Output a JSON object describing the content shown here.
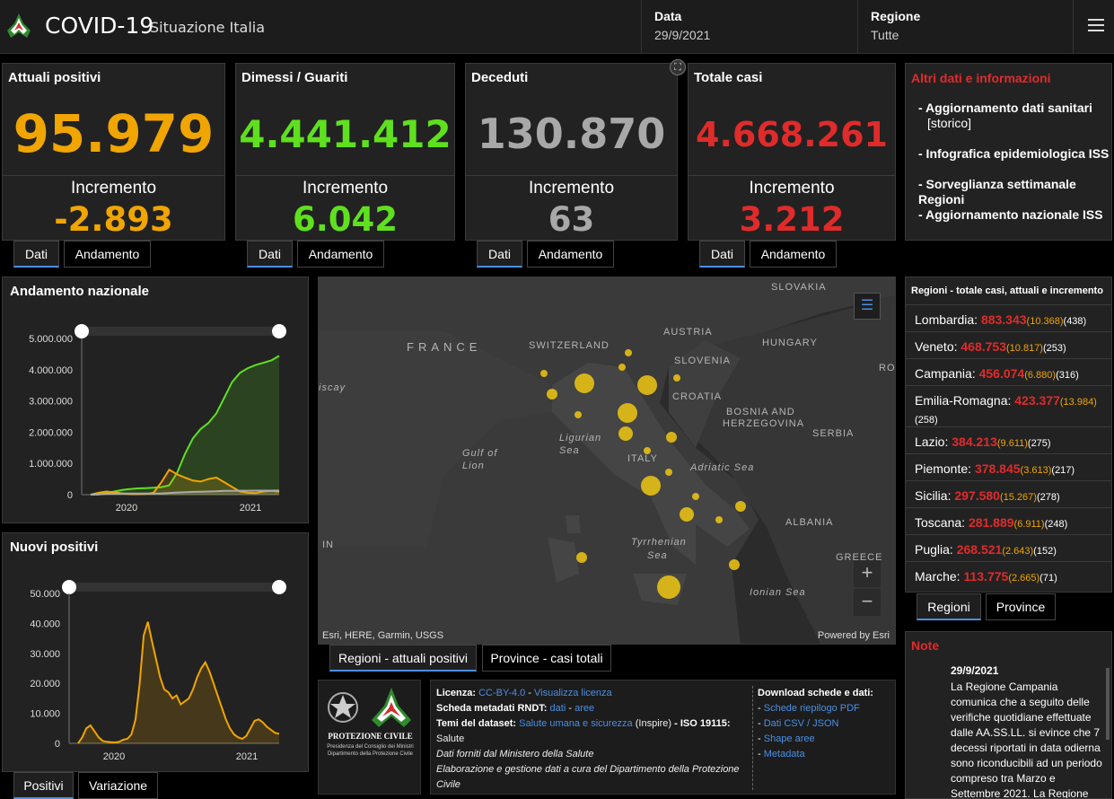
{
  "header": {
    "title": "COVID-19",
    "subtitle": "Situazione Italia",
    "date_label": "Data",
    "date_value": "29/9/2021",
    "region_label": "Regione",
    "region_value": "Tutte"
  },
  "cards": [
    {
      "title": "Attuali positivi",
      "value": "95.979",
      "inc_label": "Incremento",
      "inc_value": "-2.893",
      "color": "#f0a500",
      "tab_data": "Dati",
      "tab_trend": "Andamento"
    },
    {
      "title": "Dimessi / Guariti",
      "value": "4.441.412",
      "inc_label": "Incremento",
      "inc_value": "6.042",
      "color": "#5fe01f",
      "tab_data": "Dati",
      "tab_trend": "Andamento"
    },
    {
      "title": "Deceduti",
      "value": "130.870",
      "inc_label": "Incremento",
      "inc_value": "63",
      "color": "#a8a8a8",
      "tab_data": "Dati",
      "tab_trend": "Andamento"
    },
    {
      "title": "Totale casi",
      "value": "4.668.261",
      "inc_label": "Incremento",
      "inc_value": "3.212",
      "color": "#e02b2b",
      "tab_data": "Dati",
      "tab_trend": "Andamento"
    }
  ],
  "info": {
    "title": "Altri dati e informazioni",
    "items": [
      "- Aggiornamento dati sanitari",
      "[storico]",
      "- Infografica epidemiologica ISS",
      "- Sorveglianza settimanale Regioni",
      "- Aggiornamento nazionale ISS"
    ]
  },
  "regions": {
    "title": "Regioni - totale casi, attuali e incremento",
    "rows": [
      {
        "name": "Lombardia:",
        "total": "883.343",
        "current": "(10.368)",
        "inc": "(438)"
      },
      {
        "name": "Veneto:",
        "total": "468.753",
        "current": "(10.817)",
        "inc": "(253)"
      },
      {
        "name": "Campania:",
        "total": "456.074",
        "current": "(6.880)",
        "inc": "(316)"
      },
      {
        "name": "Emilia-Romagna:",
        "total": "423.377",
        "current": "(13.984)",
        "inc": "(258)"
      },
      {
        "name": "Lazio:",
        "total": "384.213",
        "current": "(9.611)",
        "inc": "(275)"
      },
      {
        "name": "Piemonte:",
        "total": "378.845",
        "current": "(3.613)",
        "inc": "(217)"
      },
      {
        "name": "Sicilia:",
        "total": "297.580",
        "current": "(15.267)",
        "inc": "(278)"
      },
      {
        "name": "Toscana:",
        "total": "281.889",
        "current": "(6.911)",
        "inc": "(248)"
      },
      {
        "name": "Puglia:",
        "total": "268.521",
        "current": "(2.643)",
        "inc": "(152)"
      },
      {
        "name": "Marche:",
        "total": "113.775",
        "current": "(2.665)",
        "inc": "(71)"
      }
    ],
    "tab_regions": "Regioni",
    "tab_provinces": "Province"
  },
  "note": {
    "title": "Note",
    "date": "29/9/2021",
    "text": "La Regione Campania comunica che a seguito delle verifiche quotidiane effettuate dalle AA.SS.LL. si evince che 7 decessi riportati in data odierna sono riconducibili ad un periodo compreso tra Marzo e Settembre 2021. La Regione"
  },
  "map": {
    "labels": [
      "FRANCE",
      "SWITZERLAND",
      "AUSTRIA",
      "HUNGARY",
      "SLOVAKIA",
      "SLOVENIA",
      "CROATIA",
      "BOSNIA AND",
      "HERZEGOVINA",
      "SERBIA",
      "ALBANIA",
      "GREECE",
      "ITALY",
      "Ligurian",
      "Sea",
      "Gulf of",
      "Lion",
      "Adriatic Sea",
      "Tyrrhenian",
      "Sea",
      "Ionian Sea",
      "iscay",
      "IN",
      "RO"
    ],
    "attribution": "Esri, HERE, Garmin, USGS",
    "powered": "Powered by Esri",
    "zoom_in": "+",
    "zoom_out": "−",
    "tab_regions": "Regioni - attuali positivi",
    "tab_provinces": "Province - casi totali"
  },
  "footer": {
    "logo_text1": "PROTEZIONE CIVILE",
    "logo_text2": "Presidenza del Consiglio dei Ministri",
    "logo_text3": "Dipartimento della Protezione Civile",
    "license_label": "Licenza:",
    "license_value": "CC-BY-4.0",
    "license_link": "Visualizza licenza",
    "metadata_label": "Scheda metadati RNDT:",
    "metadata_dati": "dati",
    "metadata_aree": "aree",
    "themes_label": "Temi del dataset:",
    "themes_value": "Salute umana e sicurezza",
    "themes_inspire": "(Inspire)",
    "themes_iso": "- ISO 19115:",
    "themes_iso_value": "Salute",
    "source1": "Dati forniti dal Ministero della Salute",
    "source2": "Elaborazione e gestione dati a cura del Dipartimento della Protezione Civile",
    "download_title": "Download schede e dati:",
    "downloads": [
      "Schede riepilogo PDF",
      "Dati CSV / JSON",
      "Shape aree",
      "Metadata"
    ]
  },
  "chart_data": [
    {
      "type": "line",
      "title": "Andamento nazionale",
      "ylim": [
        0,
        5000000
      ],
      "yticks": [
        "5.000.000",
        "4.000.000",
        "3.000.000",
        "2.000.000",
        "1.000.000",
        "0"
      ],
      "xticks": [
        "2020",
        "2021"
      ],
      "series": [
        {
          "color": "#5fe01f",
          "values": [
            0,
            10000,
            50000,
            100000,
            150000,
            180000,
            200000,
            210000,
            220000,
            240000,
            300000,
            700000,
            1300000,
            1800000,
            2100000,
            2300000,
            2600000,
            3100000,
            3600000,
            3900000,
            4050000,
            4150000,
            4220000,
            4300000,
            4441412
          ]
        },
        {
          "color": "#f0a500",
          "values": [
            0,
            60000,
            100000,
            80000,
            40000,
            15000,
            14000,
            20000,
            60000,
            400000,
            800000,
            650000,
            550000,
            450000,
            420000,
            500000,
            550000,
            400000,
            250000,
            100000,
            60000,
            50000,
            100000,
            120000,
            95979
          ]
        },
        {
          "color": "#aaaaaa",
          "values": [
            0,
            10000,
            25000,
            33000,
            34000,
            35000,
            35000,
            35500,
            36000,
            40000,
            55000,
            70000,
            80000,
            88000,
            95000,
            100000,
            110000,
            120000,
            125000,
            127000,
            127500,
            128000,
            129000,
            130000,
            130870
          ]
        }
      ]
    },
    {
      "type": "line",
      "title": "Nuovi positivi",
      "ylim": [
        0,
        50000
      ],
      "yticks": [
        "50.000",
        "40.000",
        "30.000",
        "20.000",
        "10.000",
        "0"
      ],
      "xticks": [
        "2020",
        "2021"
      ],
      "series": [
        {
          "color": "#f0a500",
          "values": [
            0,
            2000,
            5000,
            6000,
            4000,
            2000,
            800,
            500,
            400,
            300,
            500,
            1200,
            1500,
            3000,
            8000,
            20000,
            36000,
            40500,
            34000,
            28000,
            22000,
            18000,
            17000,
            15000,
            16000,
            13000,
            14000,
            15000,
            18000,
            22000,
            25000,
            27000,
            24000,
            20000,
            16000,
            12000,
            8000,
            5000,
            3000,
            2000,
            1500,
            2500,
            5000,
            7500,
            8000,
            7000,
            5500,
            4500,
            3500,
            3212
          ]
        }
      ]
    }
  ],
  "chart_tabs": {
    "positivi": "Positivi",
    "variazione": "Variazione"
  }
}
